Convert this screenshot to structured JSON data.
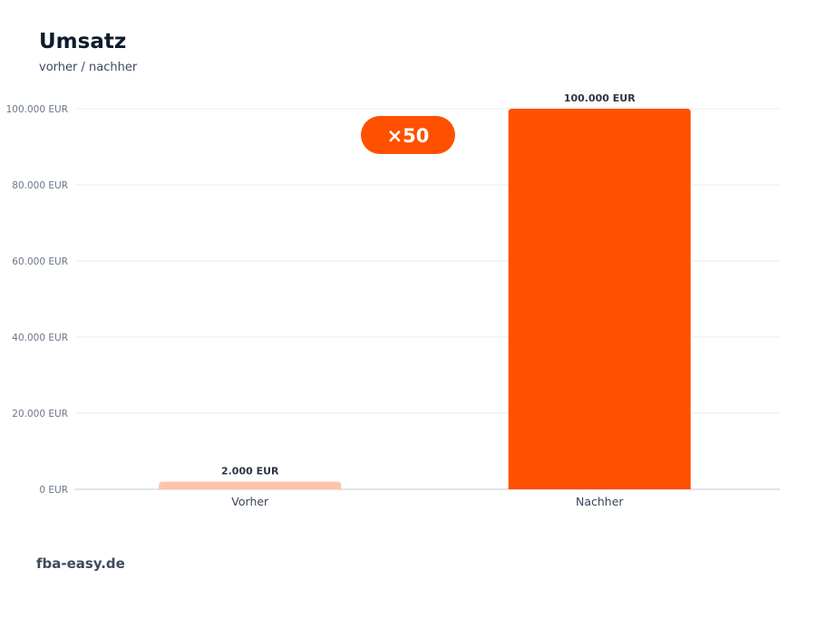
{
  "header": {
    "title": "Umsatz",
    "subtitle": "vorher / nachher"
  },
  "footer": {
    "brand": "fba-easy.de"
  },
  "badge": {
    "label": "×50"
  },
  "colors": {
    "bar_before": "#ffc4a8",
    "bar_after": "#ff5000",
    "badge": "#ff5000",
    "grid": "#eceef1",
    "axis": "#c3c8cf"
  },
  "chart_data": {
    "type": "bar",
    "title": "Umsatz",
    "subtitle": "vorher / nachher",
    "categories": [
      "Vorher",
      "Nachher"
    ],
    "values": [
      2000,
      100000
    ],
    "data_labels": [
      "2.000 EUR",
      "100.000 EUR"
    ],
    "unit": "EUR",
    "ylim": [
      0,
      100000
    ],
    "yticks": [
      0,
      20000,
      40000,
      60000,
      80000,
      100000
    ],
    "ytick_labels": [
      "0 EUR",
      "20.000 EUR",
      "40.000 EUR",
      "60.000 EUR",
      "80.000 EUR",
      "100.000 EUR"
    ],
    "grid": true,
    "legend": "none",
    "annotation": "×50"
  }
}
